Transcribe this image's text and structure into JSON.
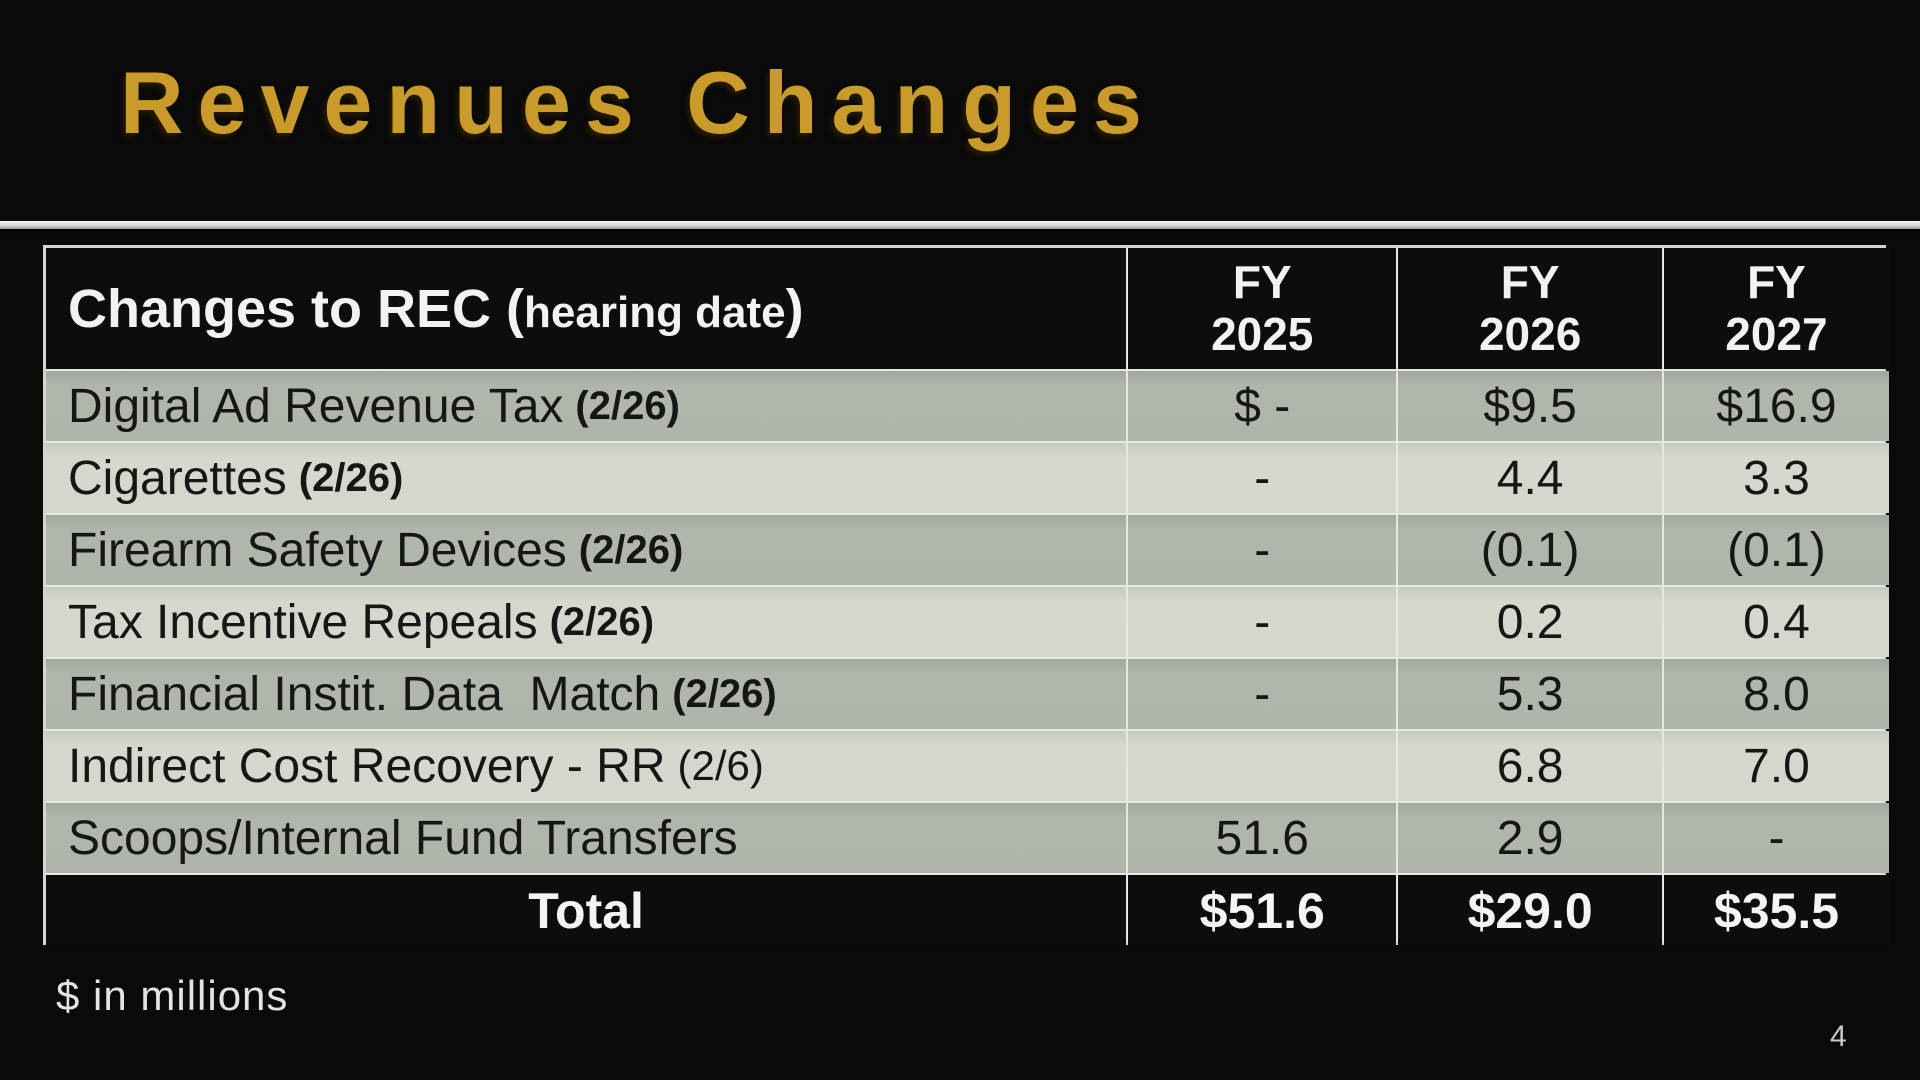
{
  "slide": {
    "title": "Revenues Changes",
    "footnote": "$ in millions",
    "page_number": "4",
    "colors": {
      "background": "#0a0a0a",
      "title_gold": "#c99b2a",
      "row_dark": "#afb5aa",
      "row_light": "#d3d7cc",
      "table_header_bg": "#0d0d0d",
      "grid_line": "#e6e8e1"
    }
  },
  "table": {
    "header": {
      "label_main": "Changes to REC (",
      "label_inner": "hearing date",
      "label_close": ")",
      "columns": [
        {
          "line1": "FY",
          "line2": "2025"
        },
        {
          "line1": "FY",
          "line2": "2026"
        },
        {
          "line1": "FY",
          "line2": "2027"
        }
      ]
    },
    "rows": [
      {
        "label": "Digital Ad Revenue Tax",
        "date": "(2/26)",
        "values": [
          "$ -",
          "$9.5",
          "$16.9"
        ]
      },
      {
        "label": "Cigarettes",
        "date": "(2/26)",
        "values": [
          "-",
          "4.4",
          "3.3"
        ]
      },
      {
        "label": "Firearm Safety Devices",
        "date": "(2/26)",
        "values": [
          "-",
          "(0.1)",
          "(0.1)"
        ]
      },
      {
        "label": "Tax Incentive Repeals",
        "date": "(2/26)",
        "values": [
          "-",
          "0.2",
          "0.4"
        ]
      },
      {
        "label": "Financial Instit. Data  Match",
        "date": "(2/26)",
        "values": [
          "-",
          "5.3",
          "8.0"
        ]
      },
      {
        "label": "Indirect Cost Recovery - RR",
        "date": "(2/6)",
        "values": [
          "",
          "6.8",
          "7.0"
        ]
      },
      {
        "label": "Scoops/Internal Fund Transfers",
        "date": "",
        "values": [
          "51.6",
          "2.9",
          "-"
        ]
      }
    ],
    "total": {
      "label": "Total",
      "values": [
        "$51.6",
        "$29.0",
        "$35.5"
      ]
    }
  }
}
